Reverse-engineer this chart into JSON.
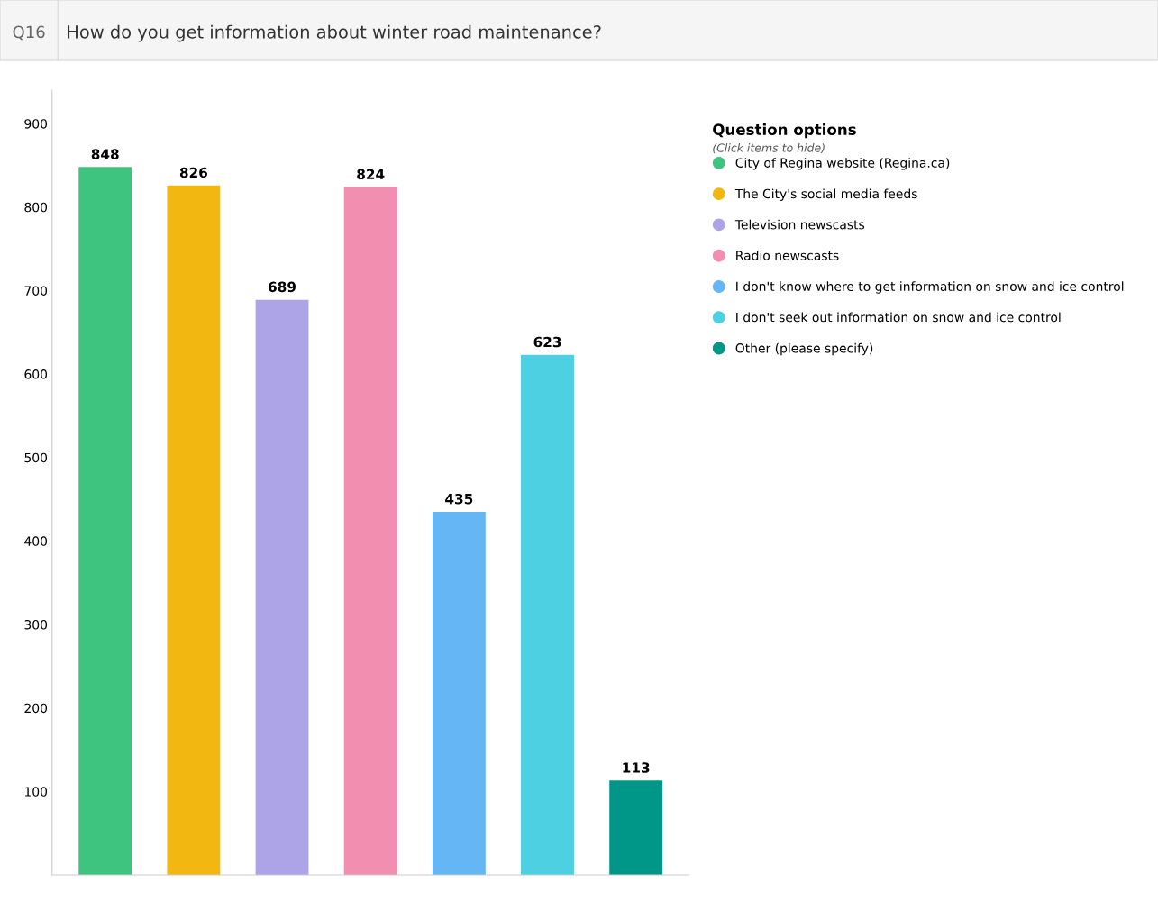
{
  "chart_data": {
    "type": "bar",
    "title": "How do you get information about winter road maintenance?",
    "annotations": [
      "Q16",
      "(Click items to hide)"
    ],
    "legend_title": "Question options",
    "categories": [
      null,
      null,
      null,
      null,
      null,
      null,
      null
    ],
    "series": [
      {
        "name": "City of Regina website (Regina.ca)",
        "color": "#3ec47f",
        "values": [
          848,
          null,
          null,
          null,
          null,
          null,
          null
        ]
      },
      {
        "name": "The City's social media feeds",
        "color": "#f2b711",
        "values": [
          null,
          826,
          null,
          null,
          null,
          null,
          null
        ]
      },
      {
        "name": "Television newscasts",
        "color": "#aca4e6",
        "values": [
          null,
          null,
          689,
          null,
          null,
          null,
          null
        ]
      },
      {
        "name": "Radio newscasts",
        "color": "#f28fb1",
        "values": [
          null,
          null,
          null,
          824,
          null,
          null,
          null
        ]
      },
      {
        "name": "I don't know where to get information on snow and ice control",
        "color": "#65b6f5",
        "values": [
          null,
          null,
          null,
          null,
          435,
          null,
          null
        ]
      },
      {
        "name": "I don't seek out information on snow and ice control",
        "color": "#4dd0e1",
        "values": [
          null,
          null,
          null,
          null,
          null,
          623,
          null
        ]
      },
      {
        "name": "Other (please specify)",
        "color": "#009688",
        "values": [
          null,
          null,
          null,
          null,
          null,
          null,
          113
        ]
      }
    ],
    "data_labels": true,
    "ylim": [
      0,
      940
    ],
    "yticks": [
      100,
      200,
      300,
      400,
      500,
      600,
      700,
      800,
      900
    ],
    "tick_labels": "y",
    "grid": false,
    "legend": "right"
  }
}
